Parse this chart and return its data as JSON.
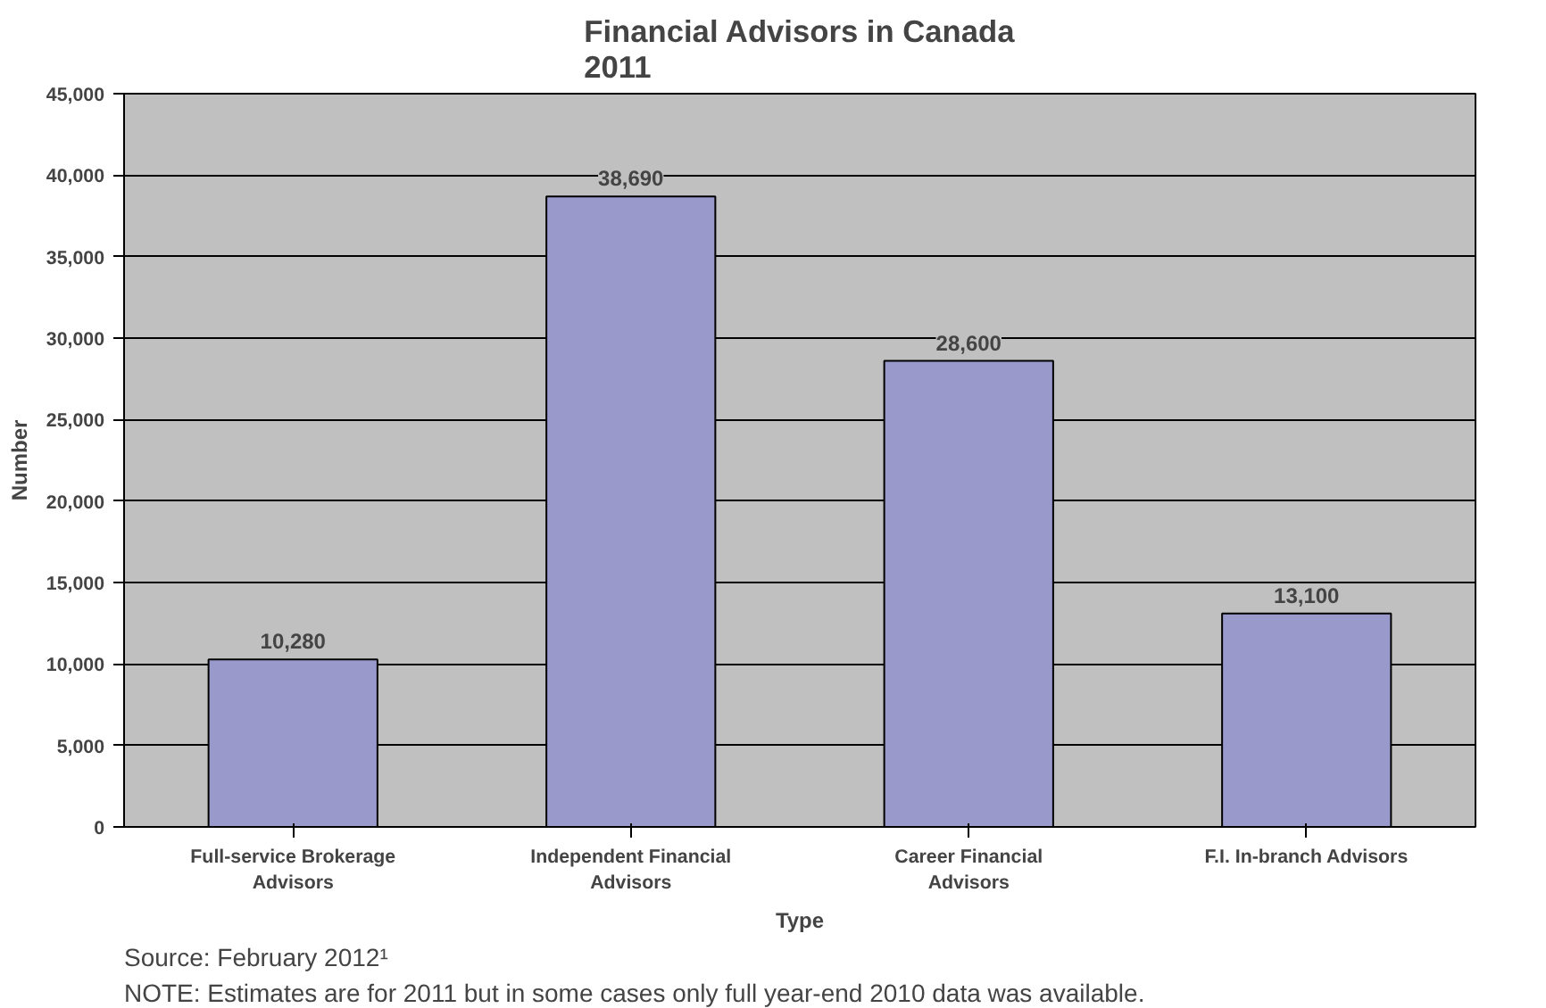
{
  "chart_data": {
    "type": "bar",
    "title": "Financial Advisors in Canada\n2011",
    "xlabel": "Type",
    "ylabel": "Number",
    "categories": [
      "Full-service Brokerage Advisors",
      "Independent Financial Advisors",
      "Career Financial Advisors",
      "F.I. In-branch Advisors"
    ],
    "values": [
      10280,
      38690,
      28600,
      13100
    ],
    "color": "#9999cc",
    "value_labels": [
      "10,280",
      "38,690",
      "28,600",
      "13,100"
    ],
    "ylim": [
      0,
      45000
    ],
    "yticks": [
      0,
      {
        "value": 5000,
        "label": "5,000"
      },
      {
        "value": 10000,
        "label": "10,000"
      },
      {
        "value": 15000,
        "label": "15,000"
      },
      {
        "value": 20000,
        "label": "20,000"
      },
      {
        "value": 25000,
        "label": "25,000"
      },
      {
        "value": 30000,
        "label": "30,000"
      },
      {
        "value": 35000,
        "label": "35,000"
      },
      {
        "value": 40000,
        "label": "40,000"
      },
      {
        "value": 45000,
        "label": "45,000"
      }
    ],
    "grid": "y",
    "annotations": [
      "Source: February 2012¹",
      "NOTE: Estimates are for 2011 but in some cases only full year-end 2010 data was available."
    ]
  }
}
